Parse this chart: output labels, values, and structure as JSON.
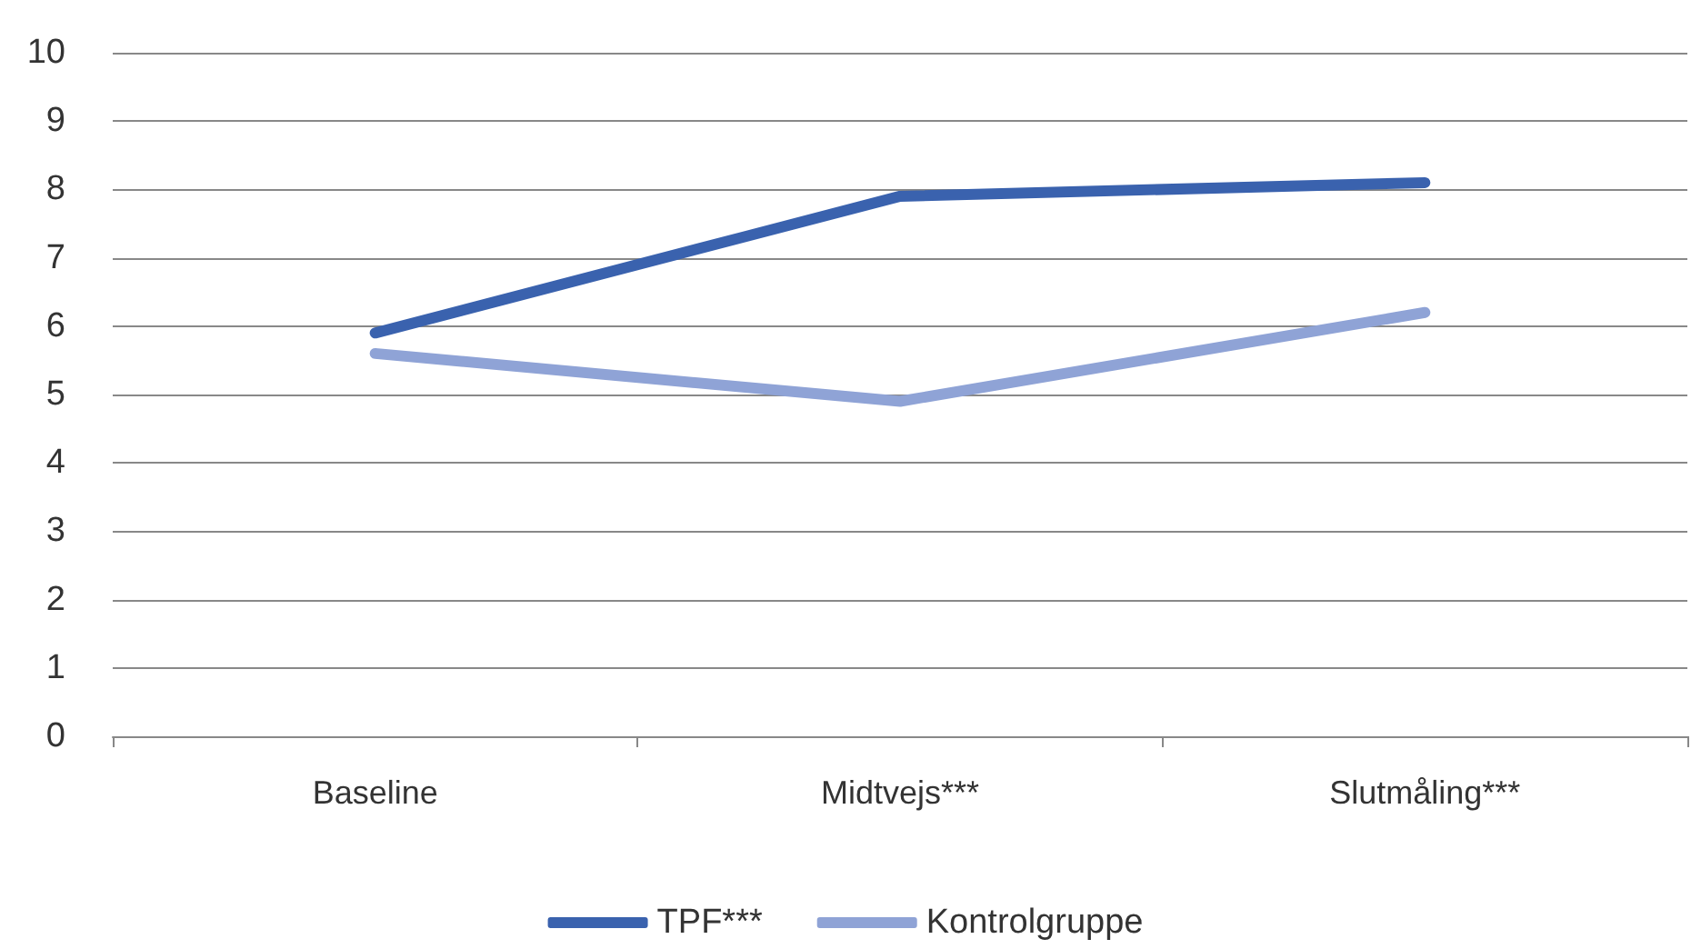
{
  "chart_data": {
    "type": "line",
    "categories": [
      "Baseline",
      "Midtvejs***",
      "Slutmåling***"
    ],
    "series": [
      {
        "name": "TPF***",
        "color": "#3a62ae",
        "values": [
          5.9,
          7.9,
          8.1
        ]
      },
      {
        "name": "Kontrolgruppe",
        "color": "#8fa3d6",
        "values": [
          5.6,
          4.9,
          6.2
        ]
      }
    ],
    "ylim": [
      0,
      10
    ],
    "yticks": [
      0,
      1,
      2,
      3,
      4,
      5,
      6,
      7,
      8,
      9,
      10
    ],
    "grid": "y",
    "legend": "bottom",
    "marker": "none",
    "line_style": "solid"
  }
}
